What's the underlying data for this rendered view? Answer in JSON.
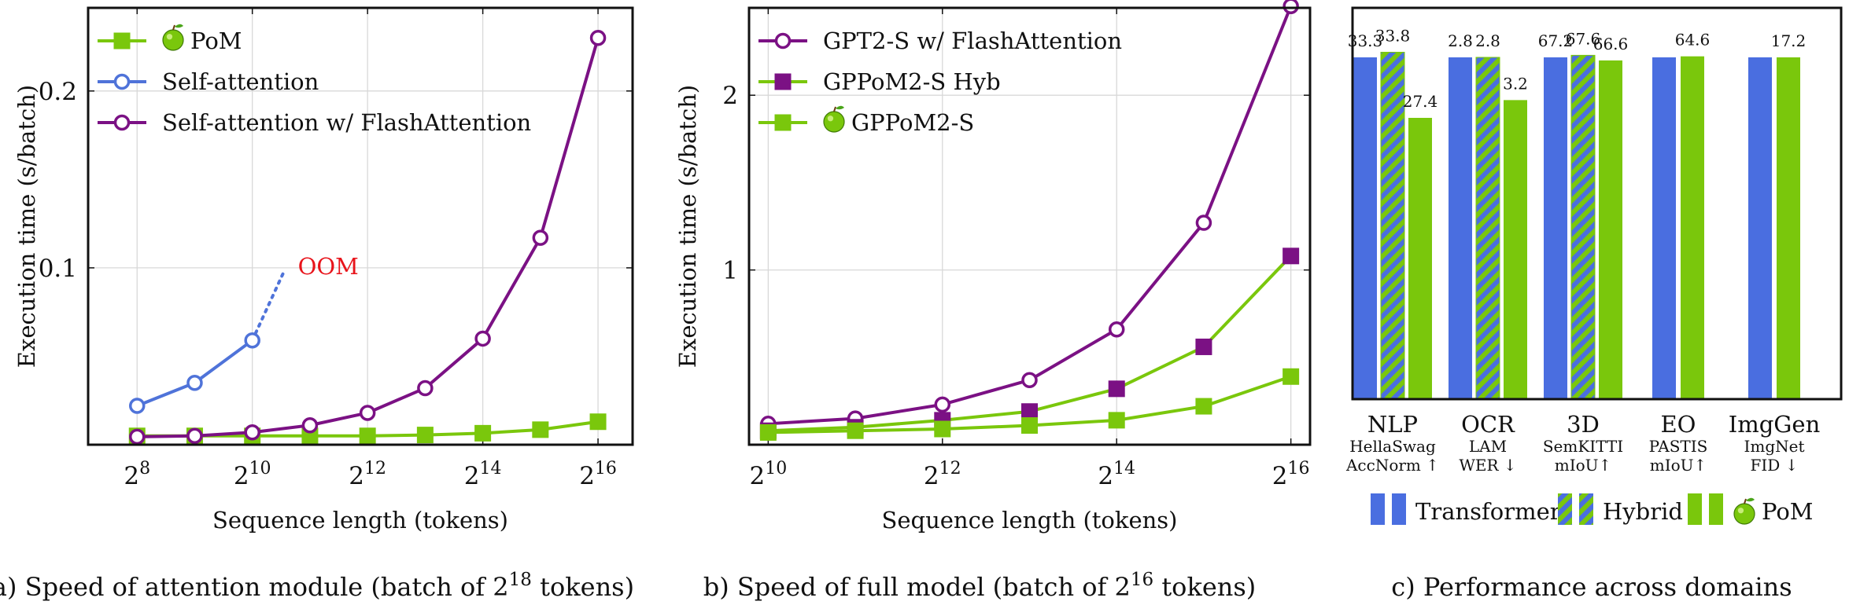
{
  "colors": {
    "pom": "#7ac70c",
    "self_attention": "#4f73d9",
    "flash": "#7b1184",
    "transformer": "#4a6ee0",
    "oom": "#e8141b"
  },
  "legend_icon": "apple-icon",
  "chart_data": [
    {
      "id": "a",
      "type": "line",
      "caption_prefix": "a) Speed of attention module (batch of 2",
      "caption_sup": "18",
      "caption_suffix": " tokens)",
      "xlabel": "Sequence length (tokens)",
      "ylabel": "Execution time (s/batch)",
      "x_scale": "log2",
      "xlim": [
        7.15,
        16.6
      ],
      "ylim": [
        0.0,
        0.247
      ],
      "xticks": [
        8,
        10,
        12,
        14,
        16
      ],
      "xtick_base": "2",
      "yticks": [
        0.1,
        0.2
      ],
      "ytick_labels": [
        "0.1",
        "0.2"
      ],
      "grid": true,
      "legend_position": "top-left",
      "annotation": {
        "text": "OOM",
        "x": 10.75,
        "y": 0.1
      },
      "series": [
        {
          "name": "PoM",
          "icon": true,
          "marker": "square",
          "color_key": "pom",
          "x": [
            8,
            9,
            10,
            11,
            12,
            13,
            14,
            15,
            16
          ],
          "y": [
            0.005,
            0.005,
            0.005,
            0.005,
            0.005,
            0.0055,
            0.0065,
            0.0085,
            0.013
          ]
        },
        {
          "name": "Self-attention",
          "marker": "circle",
          "color_key": "self_attention",
          "x": [
            8,
            9,
            10
          ],
          "y": [
            0.022,
            0.035,
            0.059
          ],
          "extrapolation": {
            "x": [
              10,
              10.55
            ],
            "y": [
              0.059,
              0.098
            ]
          }
        },
        {
          "name": "Self-attention w/ FlashAttention",
          "marker": "circle",
          "color_key": "flash",
          "x": [
            8,
            9,
            10,
            11,
            12,
            13,
            14,
            15,
            16
          ],
          "y": [
            0.0045,
            0.005,
            0.007,
            0.011,
            0.018,
            0.032,
            0.06,
            0.117,
            0.23
          ]
        }
      ]
    },
    {
      "id": "b",
      "type": "line",
      "caption_prefix": "b) Speed of full model (batch of 2",
      "caption_sup": "16",
      "caption_suffix": " tokens)",
      "xlabel": "Sequence length (tokens)",
      "ylabel": "Execution time (s/batch)",
      "x_scale": "log2",
      "xlim": [
        9.78,
        16.22
      ],
      "ylim": [
        0.0,
        2.5
      ],
      "xticks": [
        10,
        12,
        14,
        16
      ],
      "xtick_base": "2",
      "yticks": [
        1,
        2
      ],
      "ytick_labels": [
        "1",
        "2"
      ],
      "grid": true,
      "legend_position": "top-left",
      "series": [
        {
          "name": "GPT2-S w/ FlashAttention",
          "marker": "circle",
          "color_key": "flash",
          "x": [
            10,
            11,
            12,
            13,
            14,
            15,
            16
          ],
          "y": [
            0.12,
            0.15,
            0.23,
            0.37,
            0.66,
            1.27,
            2.51
          ]
        },
        {
          "name": "GPPoM2-S Hyb",
          "marker": "square",
          "color_key": "flash",
          "line_color_key": "pom",
          "x": [
            10,
            11,
            12,
            13,
            14,
            15,
            16
          ],
          "y": [
            0.08,
            0.1,
            0.14,
            0.19,
            0.32,
            0.56,
            1.08
          ]
        },
        {
          "name": "GPPoM2-S",
          "icon": true,
          "marker": "square",
          "color_key": "pom",
          "x": [
            10,
            11,
            12,
            13,
            14,
            15,
            16
          ],
          "y": [
            0.07,
            0.08,
            0.09,
            0.11,
            0.14,
            0.22,
            0.39
          ]
        }
      ]
    },
    {
      "id": "c",
      "type": "bar",
      "caption": "c) Performance across domains",
      "categories": [
        {
          "name": "NLP",
          "line1": "HellaSwag",
          "line2": "AccNorm ↑"
        },
        {
          "name": "OCR",
          "line1": "LAM",
          "line2": "WER ↓"
        },
        {
          "name": "3D",
          "line1": "SemKITTI",
          "line2": "mIoU↑"
        },
        {
          "name": "EO",
          "line1": "PASTIS",
          "line2": "mIoU↑"
        },
        {
          "name": "ImgGen",
          "line1": "ImgNet",
          "line2": "FID ↓"
        }
      ],
      "series_names": [
        "Transformer",
        "Hybrid",
        "PoM"
      ],
      "series_styles": [
        "solid-blue",
        "hatched",
        "solid-green"
      ],
      "relative_heights": [
        [
          1.0,
          1.015,
          0.823
        ],
        [
          1.0,
          1.0,
          0.875
        ],
        [
          1.0,
          1.006,
          0.991
        ],
        [
          1.0,
          null,
          1.003
        ],
        [
          1.0,
          null,
          1.0
        ]
      ],
      "labels": [
        [
          "33.3",
          "33.8",
          "27.4"
        ],
        [
          "2.8",
          "2.8",
          "3.2"
        ],
        [
          "67.2",
          "67.6",
          "66.6"
        ],
        [
          "",
          "",
          "64.6"
        ],
        [
          "",
          "",
          "17.2"
        ]
      ],
      "legend_position": "bottom"
    }
  ]
}
